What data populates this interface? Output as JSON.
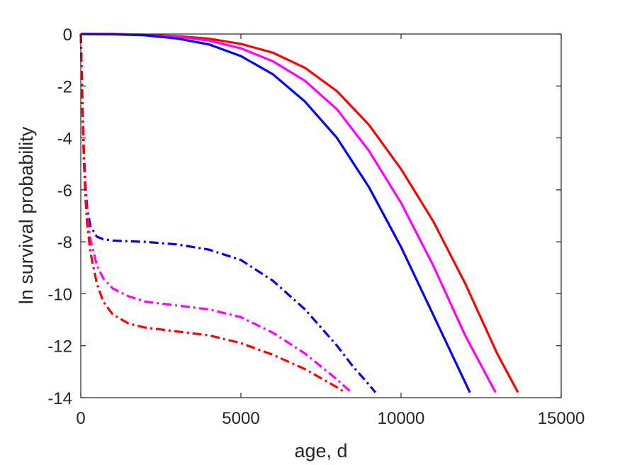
{
  "chart_data": {
    "type": "line",
    "title": "",
    "xlabel": "age, d",
    "ylabel": "ln survival probability",
    "xlim": [
      0,
      15000
    ],
    "ylim": [
      -14,
      0
    ],
    "xticks": [
      0,
      5000,
      10000,
      15000
    ],
    "xtick_labels": [
      "0",
      "5000",
      "10000",
      "15000"
    ],
    "yticks": [
      0,
      -2,
      -4,
      -6,
      -8,
      -10,
      -12,
      -14
    ],
    "ytick_labels": [
      "0",
      "-2",
      "-4",
      "-6",
      "-8",
      "-10",
      "-12",
      "-14"
    ],
    "grid": false,
    "legend": "none",
    "series": [
      {
        "color": "#ff0000",
        "style": "solid",
        "x": [
          0,
          1000,
          2000,
          3000,
          4000,
          5000,
          6000,
          7000,
          8000,
          9000,
          10000,
          11000,
          12000,
          13000,
          13650
        ],
        "y": [
          0,
          0,
          -0.03,
          -0.08,
          -0.18,
          -0.38,
          -0.72,
          -1.3,
          -2.2,
          -3.5,
          -5.2,
          -7.2,
          -9.6,
          -12.3,
          -13.8
        ]
      },
      {
        "color": "#ff00ff",
        "style": "solid",
        "x": [
          0,
          1000,
          2000,
          3000,
          4000,
          5000,
          6000,
          7000,
          8000,
          9000,
          10000,
          11000,
          12000,
          12950
        ],
        "y": [
          0,
          0,
          -0.03,
          -0.1,
          -0.25,
          -0.55,
          -1.05,
          -1.8,
          -2.9,
          -4.5,
          -6.5,
          -8.9,
          -11.6,
          -13.8
        ]
      },
      {
        "color": "#0000ff",
        "style": "solid",
        "x": [
          0,
          1000,
          2000,
          3000,
          4000,
          5000,
          6000,
          7000,
          8000,
          9000,
          10000,
          11000,
          12150
        ],
        "y": [
          0,
          -0.01,
          -0.05,
          -0.17,
          -0.4,
          -0.85,
          -1.55,
          -2.6,
          -4.0,
          -5.9,
          -8.2,
          -10.8,
          -13.8
        ]
      },
      {
        "color": "#0000ff",
        "style": "dashdot",
        "x": [
          0,
          10,
          30,
          60,
          100,
          150,
          200,
          300,
          500,
          700,
          1000,
          1500,
          2000,
          3000,
          4000,
          5000,
          6000,
          7000,
          8000,
          8500,
          9000,
          9200
        ],
        "y": [
          0,
          -0.5,
          -1.5,
          -3.0,
          -4.6,
          -5.9,
          -6.7,
          -7.4,
          -7.8,
          -7.9,
          -7.95,
          -7.98,
          -8.0,
          -8.1,
          -8.3,
          -8.7,
          -9.5,
          -10.6,
          -12.0,
          -12.8,
          -13.5,
          -13.8
        ]
      },
      {
        "color": "#ff00ff",
        "style": "dashdot",
        "x": [
          0,
          20,
          50,
          100,
          150,
          200,
          300,
          500,
          700,
          1000,
          1500,
          2000,
          3000,
          4000,
          5000,
          6000,
          7000,
          7500,
          8000,
          8450
        ],
        "y": [
          0,
          -1.0,
          -2.8,
          -4.9,
          -6.2,
          -7.0,
          -7.9,
          -8.9,
          -9.4,
          -9.8,
          -10.1,
          -10.3,
          -10.45,
          -10.6,
          -10.9,
          -11.5,
          -12.3,
          -12.8,
          -13.3,
          -13.8
        ]
      },
      {
        "color": "#ff0000",
        "style": "dashdot",
        "x": [
          0,
          20,
          50,
          100,
          150,
          200,
          300,
          500,
          700,
          1000,
          1500,
          2000,
          3000,
          4000,
          5000,
          6000,
          7000,
          7500,
          8000,
          8250
        ],
        "y": [
          0,
          -1.0,
          -2.8,
          -5.0,
          -6.4,
          -7.3,
          -8.4,
          -9.6,
          -10.3,
          -10.8,
          -11.15,
          -11.3,
          -11.45,
          -11.6,
          -11.9,
          -12.35,
          -12.9,
          -13.25,
          -13.6,
          -13.8
        ]
      }
    ]
  }
}
